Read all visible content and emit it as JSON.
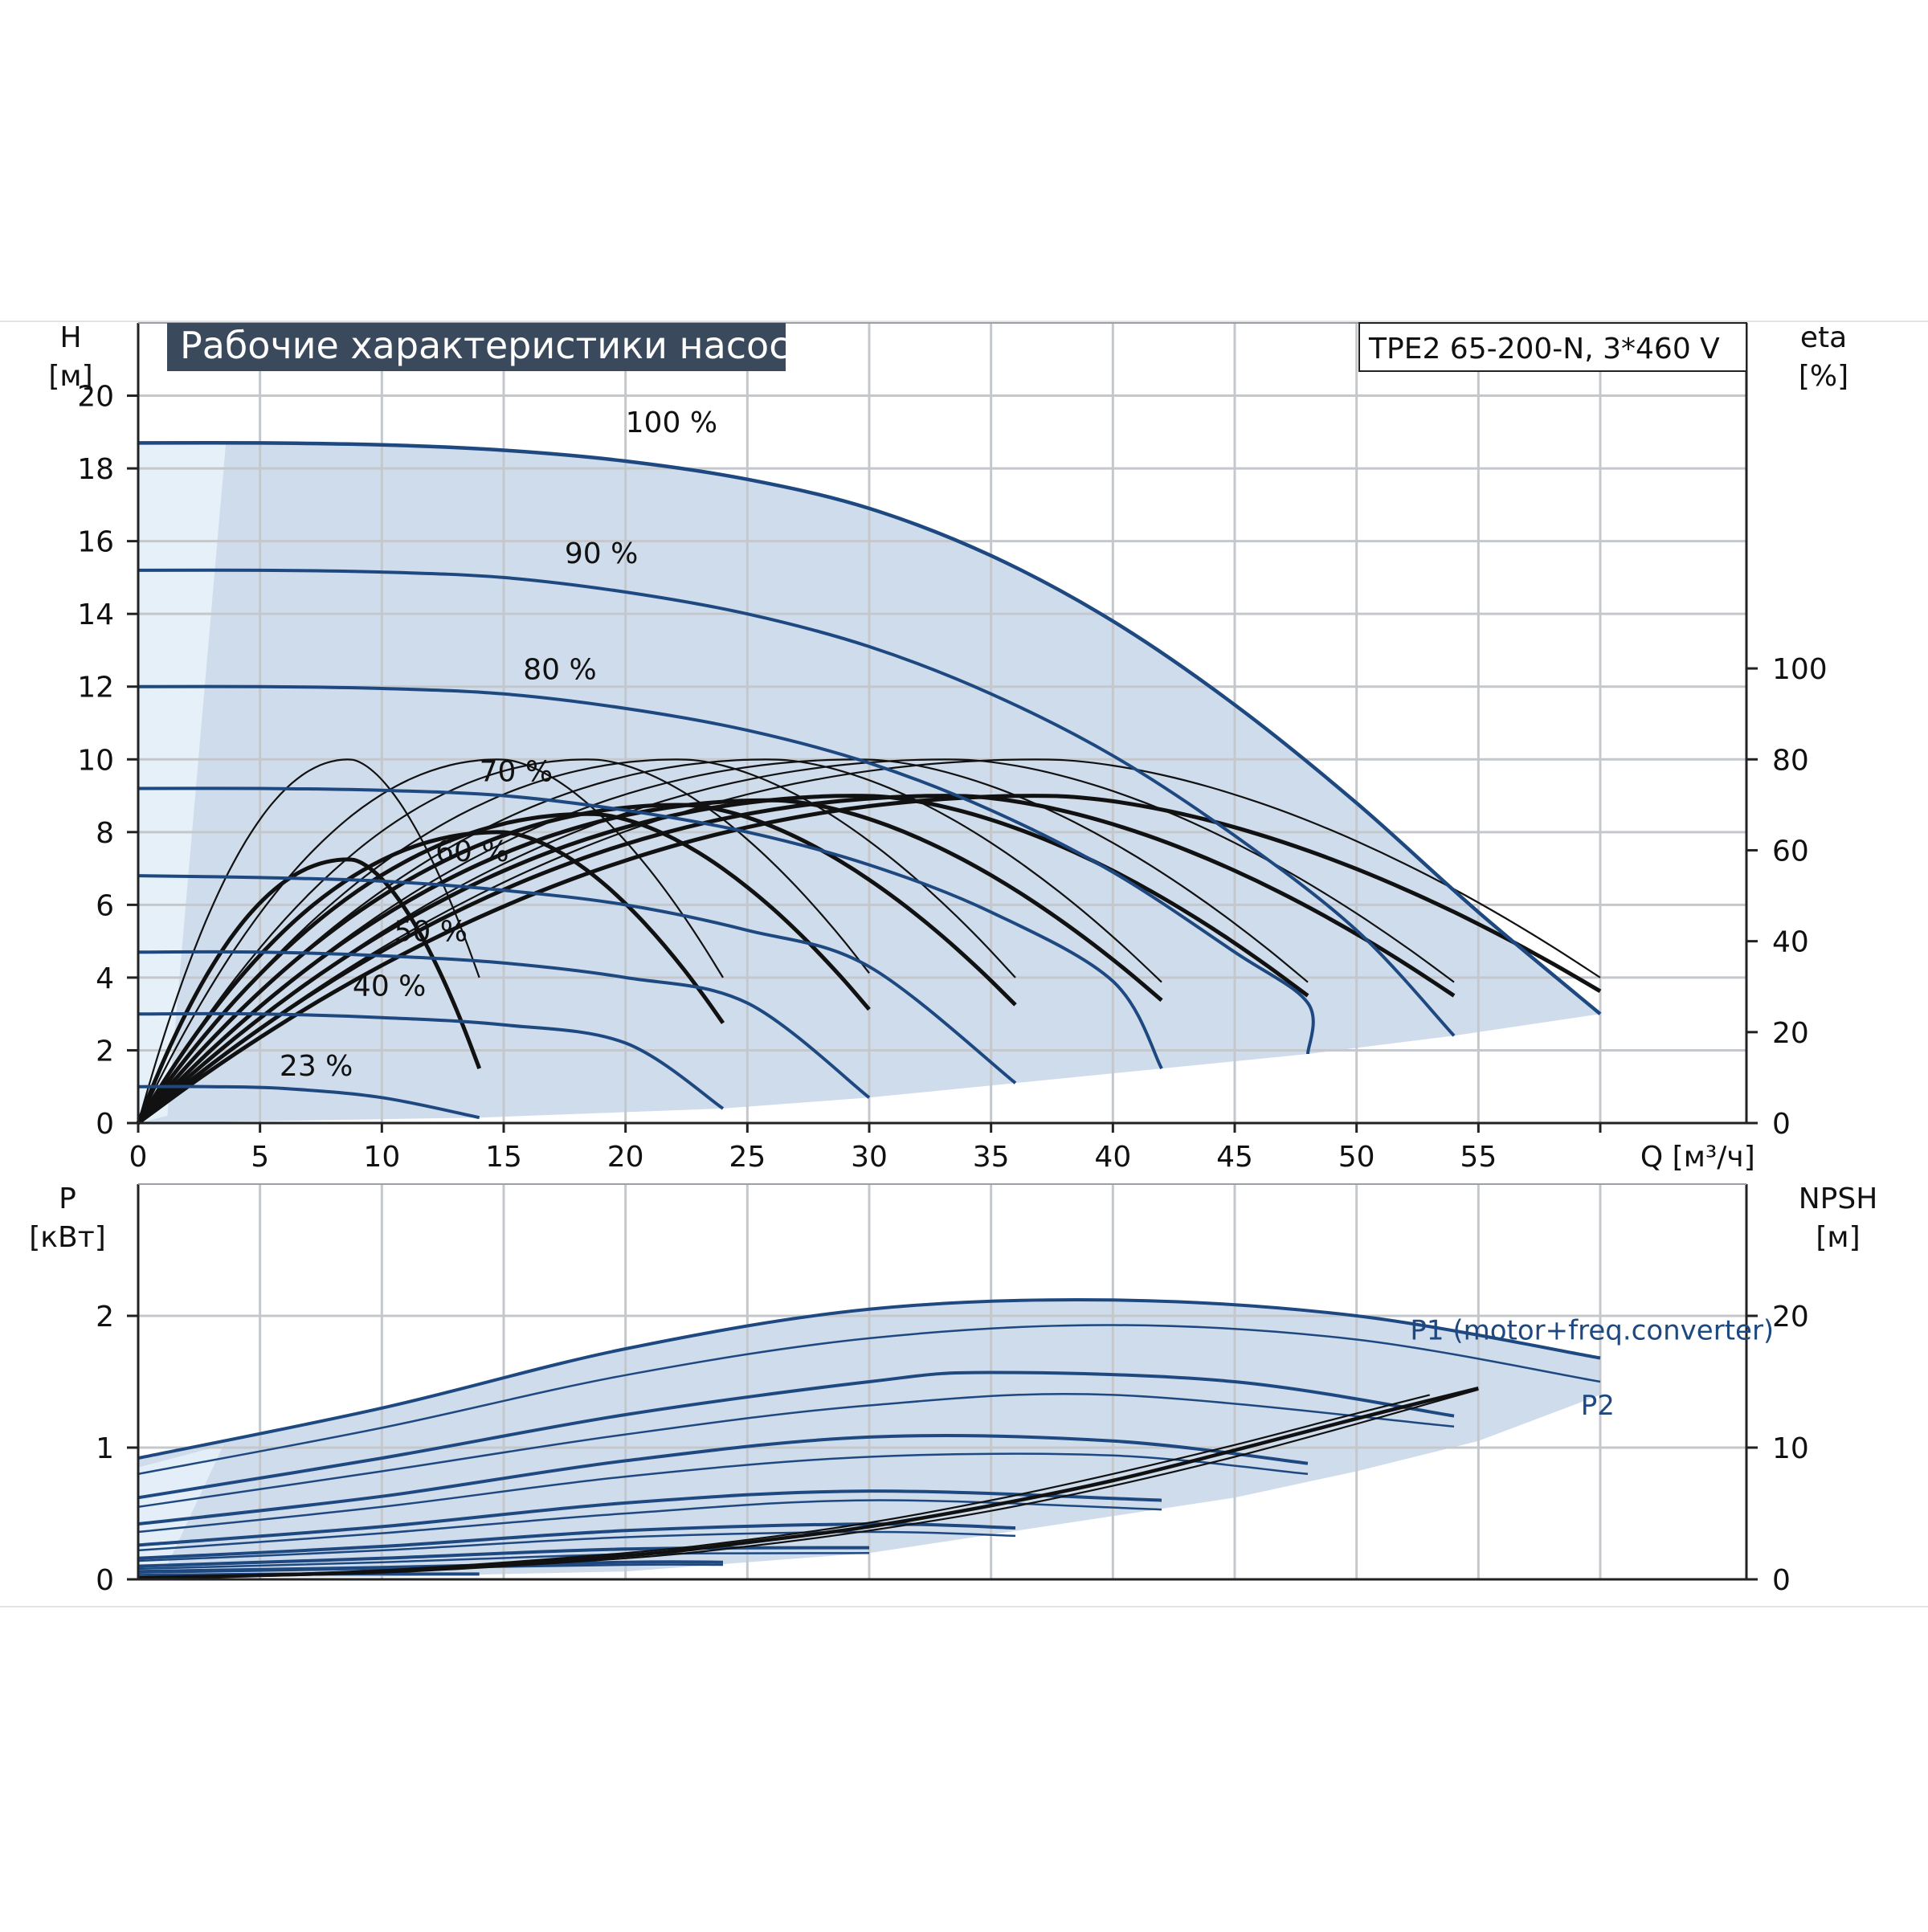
{
  "page": {
    "title": "Рабочие характеристики насоса",
    "model": "TPE2 65-200-N, 3*460 V"
  },
  "colors": {
    "envelope": "#cfdcec",
    "envelope_light": "#e9f3fb",
    "curve_blue": "#1e4880",
    "curve_black": "#111111",
    "grid": "#c4c8cc",
    "title_bg": "#3a4a5c"
  },
  "chart_data": [
    {
      "type": "line",
      "name": "pump-head-efficiency",
      "xlabel": "Q [м³/ч]",
      "ylabel_left": [
        "H",
        "[м]"
      ],
      "ylabel_right": [
        "eta",
        "[%]"
      ],
      "x_ticks": [
        0,
        5,
        10,
        15,
        20,
        25,
        30,
        35,
        40,
        45,
        50,
        55
      ],
      "y_ticks_left": [
        0,
        2,
        4,
        6,
        8,
        10,
        12,
        14,
        16,
        18,
        20
      ],
      "y_ticks_right": [
        0,
        20,
        40,
        60,
        80,
        100
      ],
      "xlim": [
        0,
        66
      ],
      "ylim_left": [
        0,
        22
      ],
      "ylim_right": [
        0,
        176
      ],
      "grid": true,
      "head_curves": [
        {
          "label": "100 %",
          "label_at": [
            20,
            19
          ],
          "points": [
            [
              0,
              18.7
            ],
            [
              5,
              18.7
            ],
            [
              10,
              18.65
            ],
            [
              15,
              18.5
            ],
            [
              20,
              18.2
            ],
            [
              25,
              17.7
            ],
            [
              30,
              16.9
            ],
            [
              35,
              15.6
            ],
            [
              40,
              13.8
            ],
            [
              45,
              11.5
            ],
            [
              50,
              8.8
            ],
            [
              55,
              5.8
            ],
            [
              60,
              3.0
            ]
          ]
        },
        {
          "label": "90 %",
          "label_at": [
            17.5,
            15.4
          ],
          "points": [
            [
              0,
              15.2
            ],
            [
              5,
              15.2
            ],
            [
              10,
              15.15
            ],
            [
              15,
              15.0
            ],
            [
              20,
              14.6
            ],
            [
              25,
              14.0
            ],
            [
              30,
              13.1
            ],
            [
              35,
              11.8
            ],
            [
              40,
              10.1
            ],
            [
              45,
              7.9
            ],
            [
              50,
              5.3
            ],
            [
              54,
              2.4
            ]
          ]
        },
        {
          "label": "80 %",
          "label_at": [
            15.8,
            12.2
          ],
          "points": [
            [
              0,
              12.0
            ],
            [
              5,
              12.0
            ],
            [
              10,
              11.95
            ],
            [
              15,
              11.8
            ],
            [
              20,
              11.4
            ],
            [
              25,
              10.8
            ],
            [
              30,
              9.9
            ],
            [
              35,
              8.6
            ],
            [
              40,
              6.9
            ],
            [
              45,
              4.7
            ],
            [
              48,
              3.3
            ],
            [
              48,
              1.9
            ]
          ]
        },
        {
          "label": "70 %",
          "label_at": [
            14,
            9.4
          ],
          "points": [
            [
              0,
              9.2
            ],
            [
              5,
              9.2
            ],
            [
              10,
              9.15
            ],
            [
              15,
              9.0
            ],
            [
              20,
              8.6
            ],
            [
              25,
              8.0
            ],
            [
              30,
              7.1
            ],
            [
              35,
              5.8
            ],
            [
              40,
              3.9
            ],
            [
              42,
              1.5
            ]
          ]
        },
        {
          "label": "60 %",
          "label_at": [
            12.2,
            7.2
          ],
          "points": [
            [
              0,
              6.8
            ],
            [
              5,
              6.75
            ],
            [
              10,
              6.65
            ],
            [
              15,
              6.4
            ],
            [
              20,
              6.0
            ],
            [
              25,
              5.3
            ],
            [
              30,
              4.3
            ],
            [
              36,
              1.1
            ]
          ]
        },
        {
          "label": "50 %",
          "label_at": [
            10.5,
            5.0
          ],
          "points": [
            [
              0,
              4.7
            ],
            [
              5,
              4.7
            ],
            [
              10,
              4.6
            ],
            [
              15,
              4.4
            ],
            [
              20,
              4.0
            ],
            [
              25,
              3.3
            ],
            [
              30,
              0.7
            ]
          ]
        },
        {
          "label": "40 %",
          "label_at": [
            8.8,
            3.5
          ],
          "points": [
            [
              0,
              3.0
            ],
            [
              5,
              3.0
            ],
            [
              10,
              2.9
            ],
            [
              15,
              2.7
            ],
            [
              20,
              2.2
            ],
            [
              24,
              0.4
            ]
          ]
        },
        {
          "label": "23 %",
          "label_at": [
            5.8,
            1.3
          ],
          "points": [
            [
              0,
              1.0
            ],
            [
              3,
              1.0
            ],
            [
              6,
              0.95
            ],
            [
              10,
              0.7
            ],
            [
              14,
              0.15
            ]
          ]
        }
      ],
      "efficiency_curves": [
        {
          "q_end": 14,
          "eta_peak": 80,
          "eta_end": 32
        },
        {
          "q_end": 24,
          "eta_peak": 80,
          "eta_end": 32
        },
        {
          "q_end": 30,
          "eta_peak": 80,
          "eta_end": 33
        },
        {
          "q_end": 36,
          "eta_peak": 80,
          "eta_end": 32
        },
        {
          "q_end": 42,
          "eta_peak": 80,
          "eta_end": 31
        },
        {
          "q_end": 48,
          "eta_peak": 80,
          "eta_end": 31
        },
        {
          "q_end": 54,
          "eta_peak": 80,
          "eta_end": 31
        },
        {
          "q_end": 60,
          "eta_peak": 80,
          "eta_end": 32
        },
        {
          "q_end": 14,
          "eta_peak": 58,
          "eta_end": 12
        },
        {
          "q_end": 24,
          "eta_peak": 64,
          "eta_end": 22
        },
        {
          "q_end": 30,
          "eta_peak": 68,
          "eta_end": 25
        },
        {
          "q_end": 36,
          "eta_peak": 70,
          "eta_end": 26
        },
        {
          "q_end": 42,
          "eta_peak": 71,
          "eta_end": 27
        },
        {
          "q_end": 48,
          "eta_peak": 72,
          "eta_end": 28
        },
        {
          "q_end": 54,
          "eta_peak": 72,
          "eta_end": 28
        },
        {
          "q_end": 60,
          "eta_peak": 72,
          "eta_end": 29
        }
      ]
    },
    {
      "type": "line",
      "name": "power-npsh",
      "ylabel_left": [
        "P",
        "[кВт]"
      ],
      "ylabel_right": [
        "NPSH",
        "[м]"
      ],
      "y_ticks_left": [
        0,
        1,
        2
      ],
      "y_ticks_right": [
        0,
        10,
        20
      ],
      "xlim": [
        0,
        66
      ],
      "ylim_left": [
        0,
        3
      ],
      "ylim_right": [
        0,
        30
      ],
      "grid": true,
      "series_labels": [
        "P1 (motor+freq.converter)",
        "P2"
      ],
      "p1_curves": [
        {
          "q_end": 60,
          "points": [
            [
              0,
              0.92
            ],
            [
              10,
              1.3
            ],
            [
              20,
              1.75
            ],
            [
              30,
              2.05
            ],
            [
              40,
              2.12
            ],
            [
              50,
              2.0
            ],
            [
              60,
              1.68
            ]
          ]
        },
        {
          "q_end": 54,
          "points": [
            [
              0,
              0.62
            ],
            [
              10,
              0.92
            ],
            [
              20,
              1.25
            ],
            [
              30,
              1.5
            ],
            [
              35,
              1.57
            ],
            [
              45,
              1.5
            ],
            [
              54,
              1.24
            ]
          ]
        },
        {
          "q_end": 48,
          "points": [
            [
              0,
              0.42
            ],
            [
              10,
              0.63
            ],
            [
              20,
              0.9
            ],
            [
              30,
              1.08
            ],
            [
              40,
              1.05
            ],
            [
              48,
              0.88
            ]
          ]
        },
        {
          "q_end": 42,
          "points": [
            [
              0,
              0.26
            ],
            [
              10,
              0.4
            ],
            [
              20,
              0.58
            ],
            [
              30,
              0.67
            ],
            [
              42,
              0.6
            ]
          ]
        },
        {
          "q_end": 36,
          "points": [
            [
              0,
              0.16
            ],
            [
              10,
              0.25
            ],
            [
              20,
              0.37
            ],
            [
              30,
              0.42
            ],
            [
              36,
              0.39
            ]
          ]
        },
        {
          "q_end": 30,
          "points": [
            [
              0,
              0.1
            ],
            [
              10,
              0.16
            ],
            [
              20,
              0.23
            ],
            [
              30,
              0.24
            ]
          ]
        },
        {
          "q_end": 24,
          "points": [
            [
              0,
              0.06
            ],
            [
              10,
              0.09
            ],
            [
              20,
              0.13
            ],
            [
              24,
              0.13
            ]
          ]
        },
        {
          "q_end": 14,
          "points": [
            [
              0,
              0.03
            ],
            [
              7,
              0.04
            ],
            [
              14,
              0.04
            ]
          ]
        }
      ],
      "p2_curves": [
        {
          "q_end": 60,
          "points": [
            [
              0,
              0.8
            ],
            [
              10,
              1.15
            ],
            [
              20,
              1.55
            ],
            [
              30,
              1.83
            ],
            [
              40,
              1.93
            ],
            [
              50,
              1.82
            ],
            [
              60,
              1.5
            ]
          ]
        },
        {
          "q_end": 54,
          "points": [
            [
              0,
              0.55
            ],
            [
              10,
              0.82
            ],
            [
              20,
              1.1
            ],
            [
              30,
              1.32
            ],
            [
              40,
              1.4
            ],
            [
              54,
              1.16
            ]
          ]
        },
        {
          "q_end": 48,
          "points": [
            [
              0,
              0.36
            ],
            [
              10,
              0.55
            ],
            [
              20,
              0.78
            ],
            [
              30,
              0.93
            ],
            [
              40,
              0.94
            ],
            [
              48,
              0.8
            ]
          ]
        },
        {
          "q_end": 42,
          "points": [
            [
              0,
              0.22
            ],
            [
              10,
              0.35
            ],
            [
              20,
              0.5
            ],
            [
              30,
              0.6
            ],
            [
              42,
              0.53
            ]
          ]
        },
        {
          "q_end": 36,
          "points": [
            [
              0,
              0.14
            ],
            [
              10,
              0.22
            ],
            [
              20,
              0.32
            ],
            [
              30,
              0.36
            ],
            [
              36,
              0.33
            ]
          ]
        },
        {
          "q_end": 30,
          "points": [
            [
              0,
              0.08
            ],
            [
              10,
              0.13
            ],
            [
              20,
              0.19
            ],
            [
              30,
              0.2
            ]
          ]
        },
        {
          "q_end": 24,
          "points": [
            [
              0,
              0.05
            ],
            [
              10,
              0.08
            ],
            [
              20,
              0.11
            ],
            [
              24,
              0.11
            ]
          ]
        }
      ],
      "npsh_curves": [
        {
          "points": [
            [
              0,
              0.1
            ],
            [
              10,
              0.6
            ],
            [
              20,
              1.8
            ],
            [
              25,
              2.8
            ],
            [
              30,
              4.0
            ],
            [
              35,
              5.6
            ],
            [
              40,
              7.5
            ],
            [
              45,
              9.8
            ],
            [
              50,
              12.2
            ],
            [
              55,
              14.5
            ]
          ]
        },
        {
          "points": [
            [
              0,
              0.1
            ],
            [
              10,
              0.7
            ],
            [
              20,
              2.0
            ],
            [
              25,
              3.0
            ],
            [
              30,
              4.3
            ],
            [
              35,
              6.0
            ],
            [
              40,
              8.0
            ],
            [
              45,
              10.2
            ],
            [
              50,
              12.6
            ],
            [
              53,
              14.0
            ]
          ]
        },
        {
          "points": [
            [
              0,
              0.1
            ],
            [
              10,
              0.5
            ],
            [
              20,
              1.6
            ],
            [
              25,
              2.5
            ],
            [
              30,
              3.7
            ],
            [
              35,
              5.2
            ],
            [
              40,
              7.1
            ],
            [
              45,
              9.3
            ],
            [
              50,
              11.8
            ],
            [
              55,
              14.4
            ]
          ]
        }
      ]
    }
  ]
}
